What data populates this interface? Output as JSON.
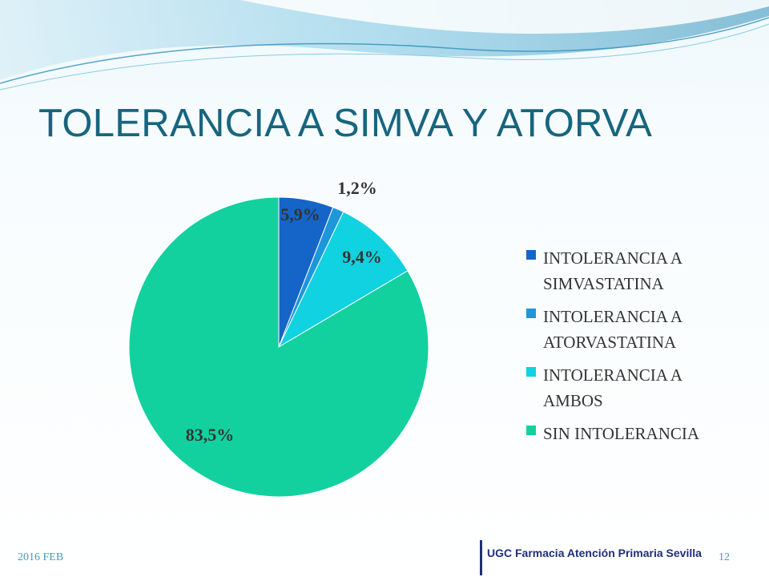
{
  "slide": {
    "title": "TOLERANCIA A SIMVA Y ATORVA",
    "date": "2016 FEB",
    "brand": "UGC Farmacia Atención Primaria Sevilla",
    "page_number": "12"
  },
  "chart_data": {
    "type": "pie",
    "title": "",
    "start_angle": "12 o'clock",
    "direction": "clockwise",
    "legend_position": "right",
    "slices": [
      {
        "name": "INTOLERANCIA A SIMVASTATINA",
        "legend_lines": [
          "INTOLERANCIA A",
          "SIMVASTATINA"
        ],
        "value": 5.9,
        "label": "5,9%",
        "color": "#1565c8"
      },
      {
        "name": "INTOLERANCIA A ATORVASTATINA",
        "legend_lines": [
          "INTOLERANCIA A",
          "ATORVASTATINA"
        ],
        "value": 1.2,
        "label": "1,2%",
        "color": "#1e96dc"
      },
      {
        "name": "INTOLERANCIA A AMBOS",
        "legend_lines": [
          "INTOLERANCIA A",
          "AMBOS"
        ],
        "value": 9.4,
        "label": "9,4%",
        "color": "#10d2e0"
      },
      {
        "name": "SIN INTOLERANCIA",
        "legend_lines": [
          "SIN INTOLERANCIA"
        ],
        "value": 83.5,
        "label": "83,5%",
        "color": "#12d19f"
      }
    ]
  },
  "theme": {
    "title_color": "#17657e",
    "background_color": "#ffffff",
    "wave_colors": [
      "#9fd7ea",
      "#5bb6d6",
      "#2f8fb8"
    ]
  }
}
